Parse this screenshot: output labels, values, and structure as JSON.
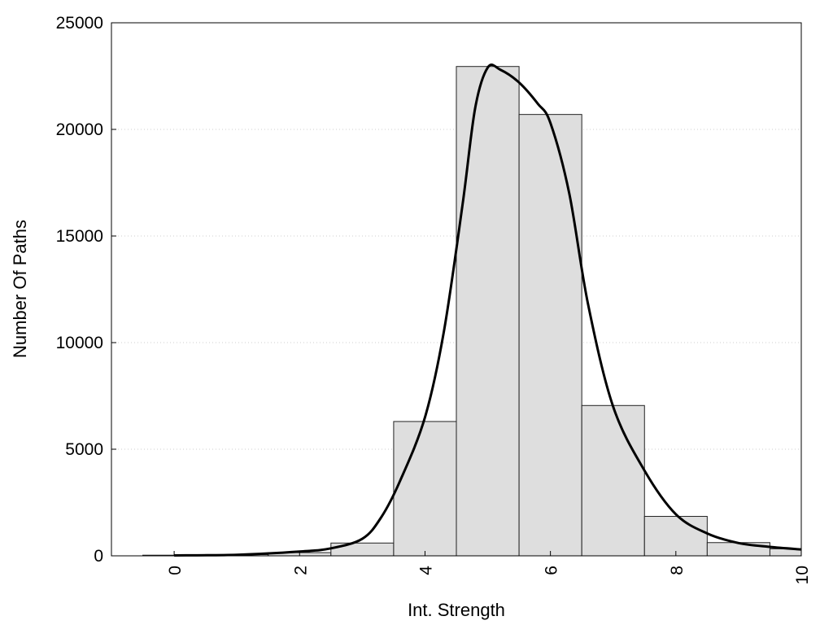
{
  "chart_data": {
    "type": "bar",
    "xlabel": "Int. Strength",
    "ylabel": "Number Of Paths",
    "xlim": [
      -1,
      10
    ],
    "ylim": [
      0,
      25000
    ],
    "x_ticks": [
      0,
      2,
      4,
      6,
      8,
      10
    ],
    "y_ticks": [
      0,
      5000,
      10000,
      15000,
      20000,
      25000
    ],
    "grid": "horizontal dotted",
    "bar_width": 1,
    "bars": [
      {
        "x": 0,
        "value": 30
      },
      {
        "x": 1,
        "value": 60
      },
      {
        "x": 2,
        "value": 150
      },
      {
        "x": 3,
        "value": 600
      },
      {
        "x": 4,
        "value": 6300
      },
      {
        "x": 5,
        "value": 22950
      },
      {
        "x": 6,
        "value": 20700
      },
      {
        "x": 7,
        "value": 7050
      },
      {
        "x": 8,
        "value": 1850
      },
      {
        "x": 9,
        "value": 620
      },
      {
        "x": 10,
        "value": 330
      }
    ],
    "density_curve": {
      "x": [
        0,
        1,
        2,
        2.5,
        3,
        3.3,
        3.6,
        4,
        4.3,
        4.6,
        4.8,
        5,
        5.2,
        5.5,
        5.8,
        6,
        6.3,
        6.6,
        7,
        7.5,
        8,
        8.5,
        9,
        9.5,
        10
      ],
      "y": [
        20,
        50,
        200,
        350,
        800,
        1800,
        3500,
        6500,
        10500,
        16500,
        21000,
        22900,
        22800,
        22200,
        21200,
        20300,
        17000,
        11800,
        7000,
        4000,
        1950,
        1050,
        600,
        420,
        300
      ]
    },
    "colors": {
      "bar_fill": "#dedede",
      "bar_stroke": "#222222",
      "curve": "#000000",
      "grid": "#cccccc"
    }
  }
}
